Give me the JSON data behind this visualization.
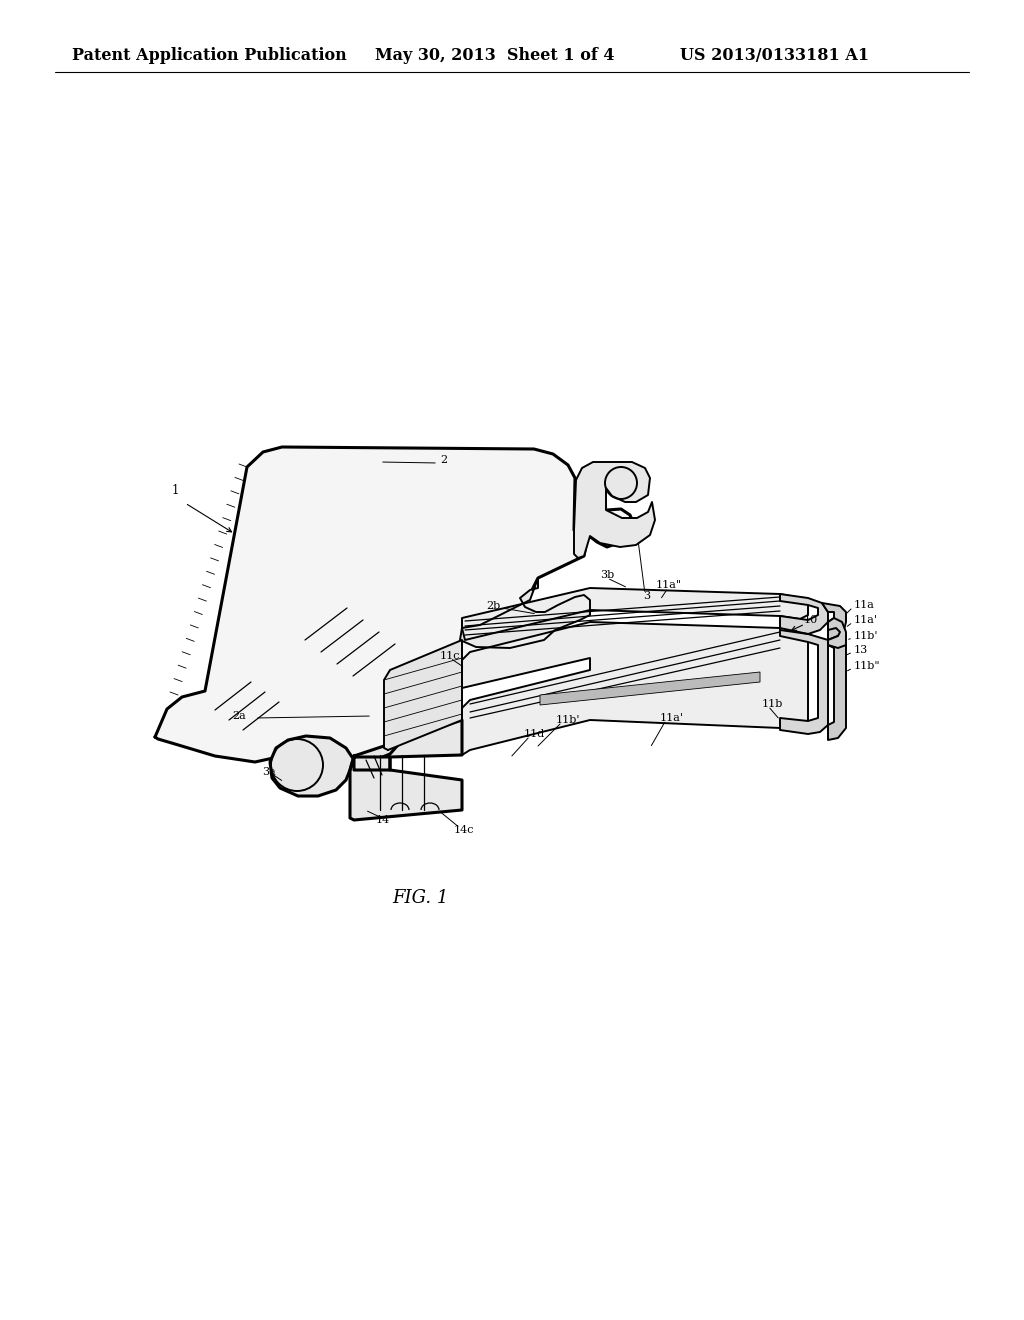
{
  "background_color": "#ffffff",
  "header_text": "Patent Application Publication",
  "header_date": "May 30, 2013  Sheet 1 of 4",
  "header_patent": "US 2013/0133181 A1",
  "caption": "FIG. 1",
  "fig_width": 10.24,
  "fig_height": 13.2,
  "dpi": 100,
  "header_fontsize": 11.5,
  "caption_fontsize": 13,
  "line_color": "#000000",
  "lw_thick": 2.2,
  "lw_med": 1.4,
  "lw_thin": 0.9,
  "lw_vt": 0.6,
  "plate_color": "#f5f5f5",
  "bracket_color": "#e8e8e8",
  "wg_color": "#eeeeee",
  "wg_dark": "#d8d8d8",
  "grey_color": "#bbbbbb",
  "label_fontsize": 8.0
}
